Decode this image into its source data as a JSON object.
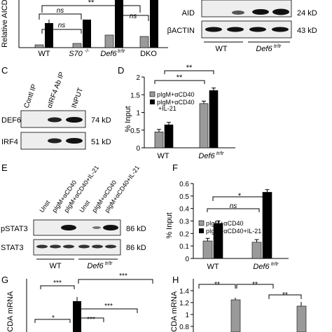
{
  "colors": {
    "black": "#000000",
    "gray": "#9a9a9a",
    "blot_bg": "#eeeeee",
    "band": "#111111"
  },
  "panelA": {
    "axis_label": "Relative AICDA",
    "stars": "**",
    "ns1": "ns",
    "ns2": "ns",
    "ns3": "ns",
    "x_labels": [
      "WT",
      "S70",
      "-/-",
      "Def6",
      "tr/tr",
      "DKO"
    ]
  },
  "panelB": {
    "rows": [
      {
        "label": "AID",
        "kd": "24 kD"
      },
      {
        "label": "βACTIN",
        "kd": "43 kD"
      }
    ],
    "groups": [
      "WT",
      "Def6",
      "tr/tr"
    ]
  },
  "panelC": {
    "letter": "C",
    "lanes": [
      "Contl IP",
      "αIRF4 Ab IP",
      "INPUT"
    ],
    "rows": [
      {
        "label": "DEF6",
        "kd": "74 kD"
      },
      {
        "label": "IRF4",
        "kd": "51 kD"
      }
    ]
  },
  "panelD": {
    "letter": "D",
    "chart_data": {
      "type": "bar",
      "categories": [
        "WT",
        "Def6 tr/tr"
      ],
      "series": [
        {
          "name": "pIgM+αCD40",
          "values": [
            0.45,
            1.25
          ]
        },
        {
          "name": "pIgM+αCD40 +IL-21",
          "values": [
            0.65,
            1.62
          ]
        }
      ],
      "ylabel": "% Input",
      "ylim": [
        0,
        2
      ],
      "yticks": [
        "0",
        "0.5",
        "1",
        "1.5",
        "2"
      ],
      "significance": [
        "**",
        "**"
      ]
    },
    "legend": [
      "pIgM+αCD40",
      "pIgM+αCD40",
      "+IL-21"
    ],
    "x_labels": [
      "WT",
      "Def6",
      "tr/tr"
    ]
  },
  "panelE": {
    "letter": "E",
    "lanes": [
      "Unst",
      "pIgM+αCD40",
      "pIgM+αCD40+IL-21",
      "Unst",
      "pIgM+αCD40",
      "pIgM+αCD40+IL-21"
    ],
    "rows": [
      {
        "label": "pSTAT3",
        "kd": "86 kD"
      },
      {
        "label": "STAT3",
        "kd": "86 kD"
      }
    ],
    "groups": [
      "WT",
      "Def6",
      "tr/tr"
    ]
  },
  "panelF": {
    "letter": "F",
    "chart_data": {
      "type": "bar",
      "categories": [
        "WT",
        "Def6 tr/tr"
      ],
      "series": [
        {
          "name": "pIgM+αCD40",
          "values": [
            0.14,
            0.13
          ]
        },
        {
          "name": "pIgM+αCD40+IL-21",
          "values": [
            0.28,
            0.53
          ]
        }
      ],
      "ylabel": "% Input",
      "ylim": [
        0,
        0.6
      ],
      "yticks": [
        "0",
        "0.1",
        "0.2",
        "0.3",
        "0.4",
        "0.5",
        "0.6"
      ],
      "significance": [
        "*",
        "ns"
      ]
    },
    "x_labels": [
      "WT",
      "Def6",
      "tr/tr"
    ]
  },
  "panelG": {
    "letter": "G",
    "axis_label": "AICDA mRNA",
    "sig": [
      "***",
      "***",
      "***",
      "*",
      "***"
    ]
  },
  "panelH": {
    "letter": "H",
    "axis_label": "AICDA mRNA",
    "yticks": [
      "1.4",
      "1.2",
      "1",
      "0.8"
    ],
    "sig": [
      "**",
      "**",
      "**"
    ]
  }
}
